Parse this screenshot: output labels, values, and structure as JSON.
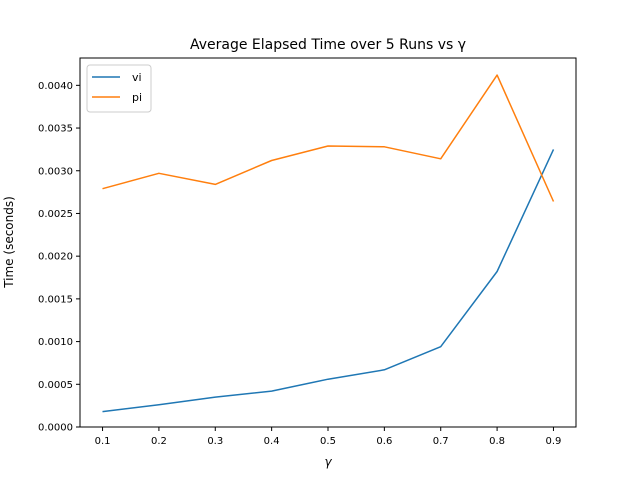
{
  "chart_data": {
    "type": "line",
    "title": "Average Elapsed Time over 5 Runs vs γ",
    "xlabel": "γ",
    "ylabel": "Time (seconds)",
    "x": [
      0.1,
      0.2,
      0.3,
      0.4,
      0.5,
      0.6,
      0.7,
      0.8,
      0.9
    ],
    "x_ticks": [
      "0.1",
      "0.2",
      "0.3",
      "0.4",
      "0.5",
      "0.6",
      "0.7",
      "0.8",
      "0.9"
    ],
    "y_ticks": [
      "0.0000",
      "0.0005",
      "0.0010",
      "0.0015",
      "0.0020",
      "0.0025",
      "0.0030",
      "0.0035",
      "0.0040"
    ],
    "xlim": [
      0.06,
      0.94
    ],
    "ylim": [
      0,
      0.00432
    ],
    "grid": false,
    "legend_position": "top-left",
    "series": [
      {
        "name": "vi",
        "color": "#1f77b4",
        "values": [
          0.00018,
          0.00026,
          0.00035,
          0.00042,
          0.00056,
          0.00067,
          0.00094,
          0.00182,
          0.00325
        ]
      },
      {
        "name": "pi",
        "color": "#ff7f0e",
        "values": [
          0.00279,
          0.00297,
          0.00284,
          0.00312,
          0.00329,
          0.00328,
          0.00314,
          0.00412,
          0.00264
        ]
      }
    ]
  }
}
